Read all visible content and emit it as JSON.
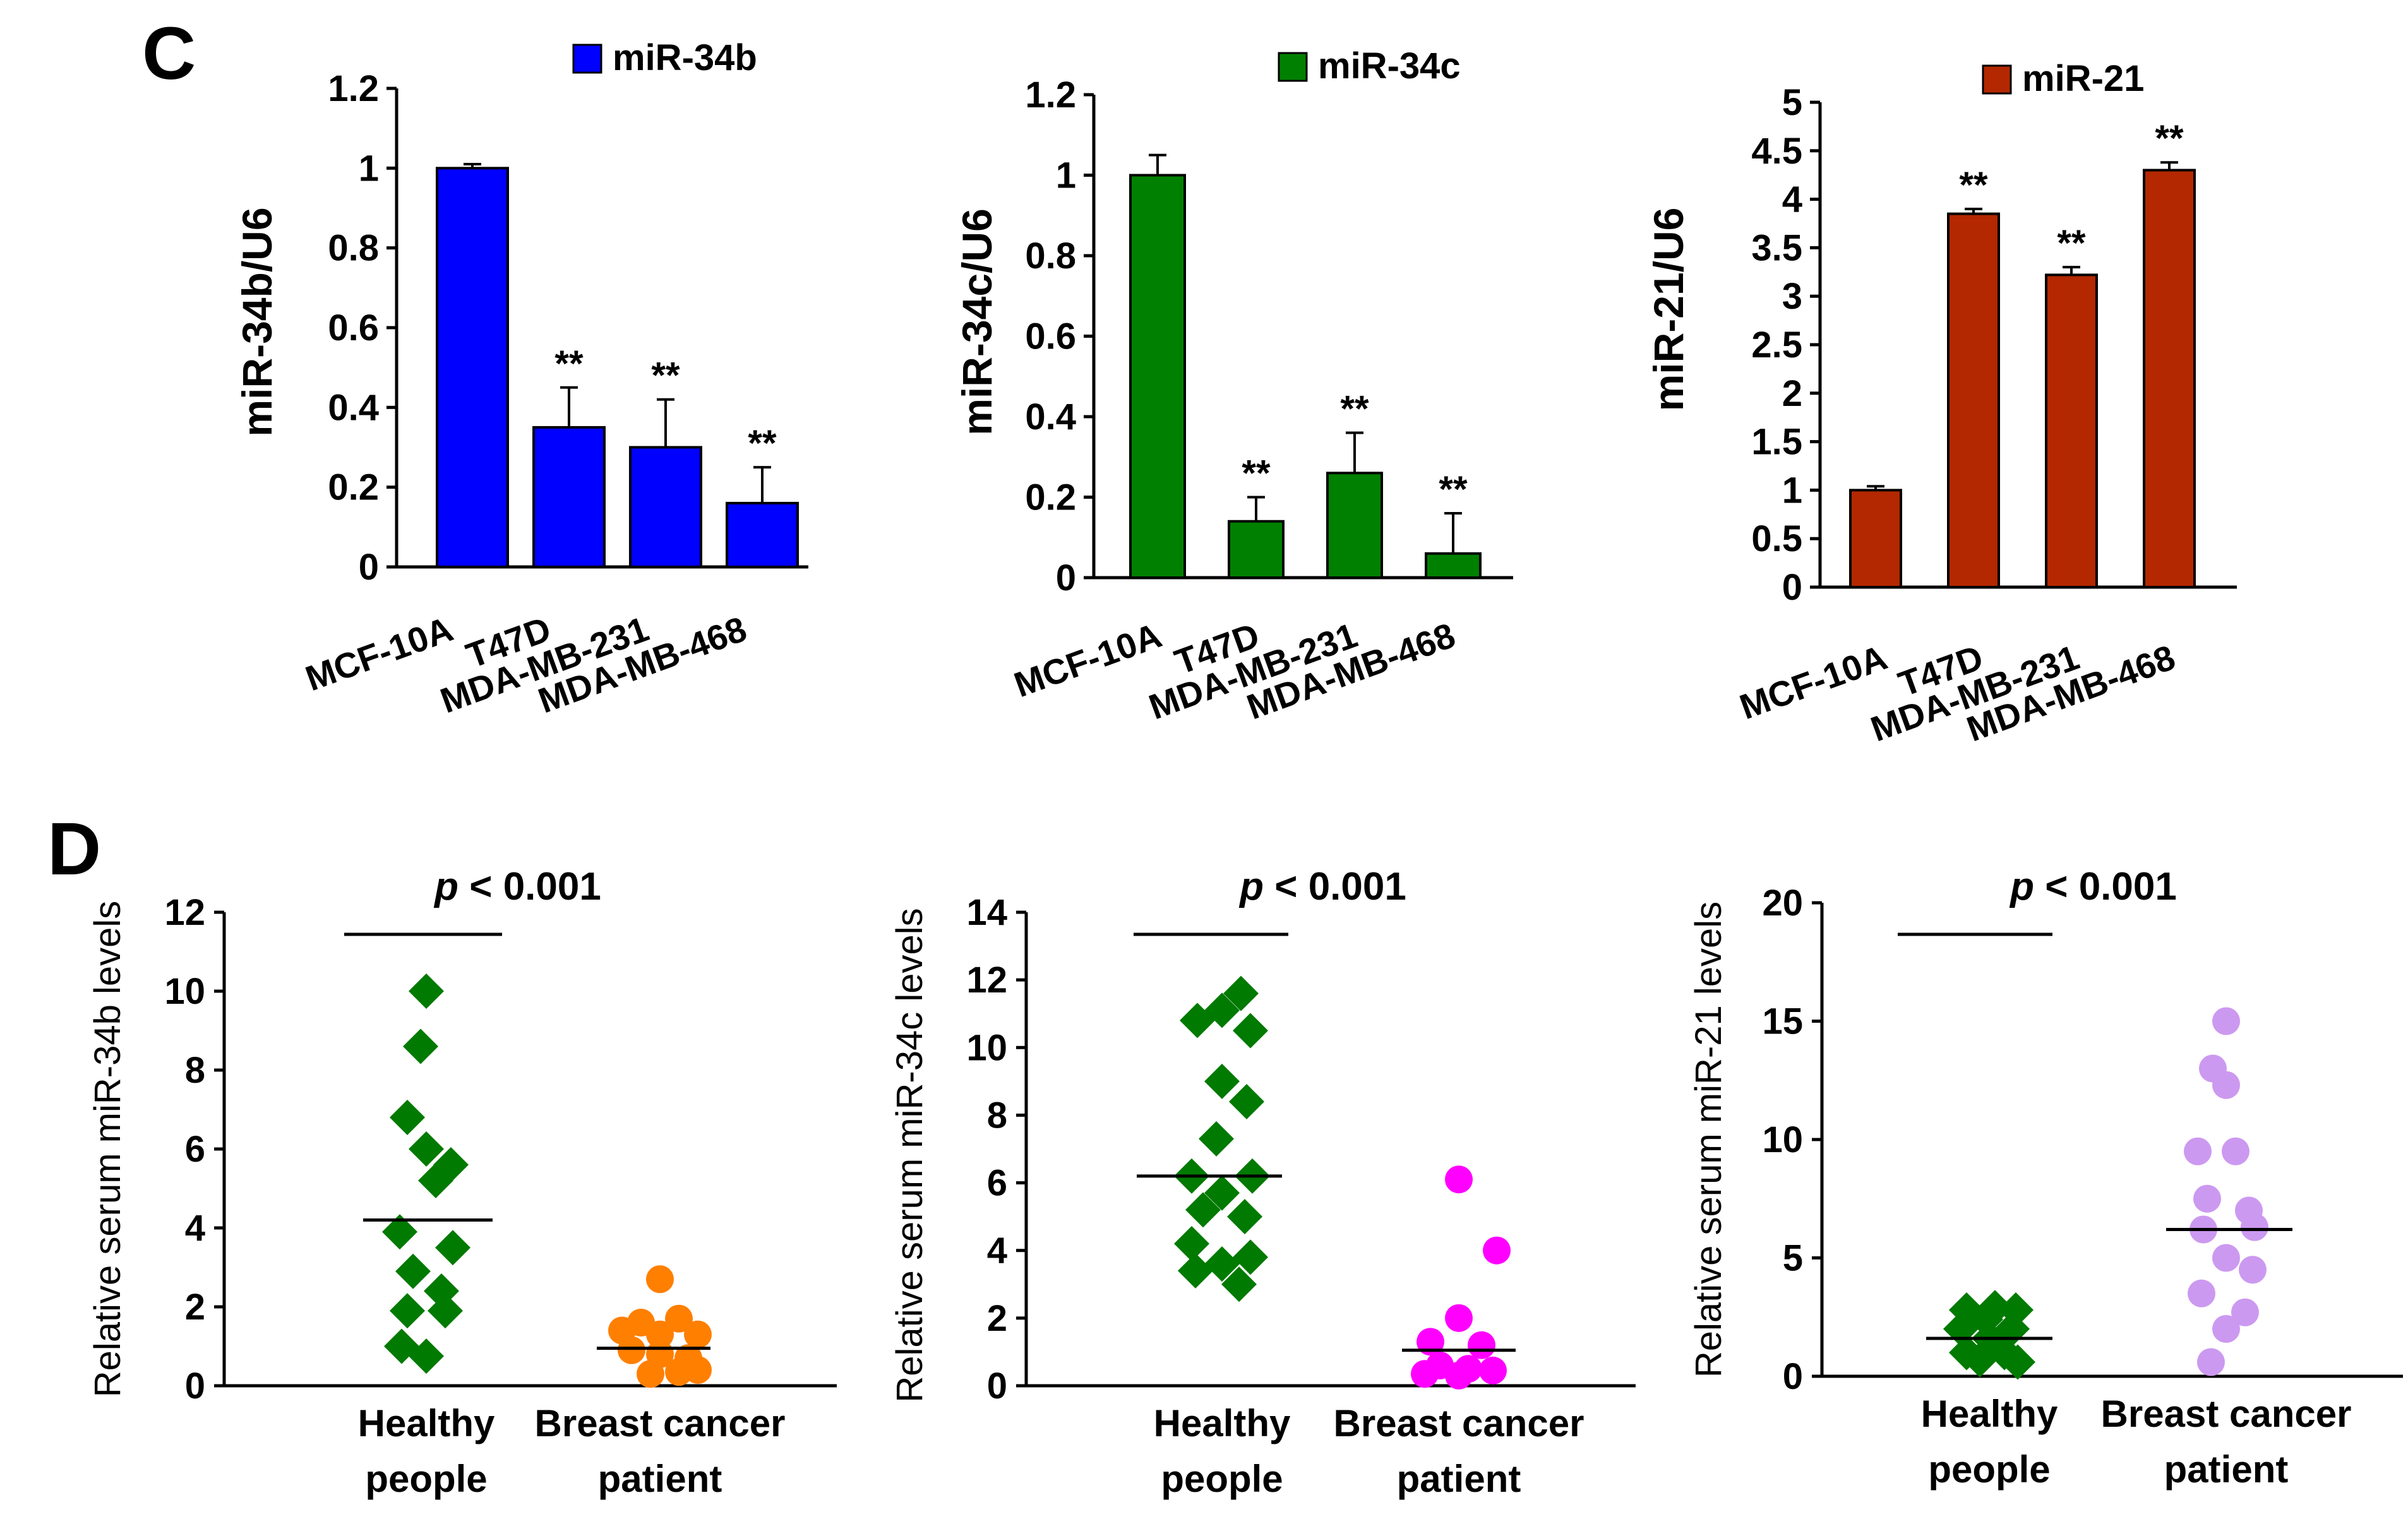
{
  "panels": {
    "C": "C",
    "D": "D"
  },
  "chart_data": [
    {
      "type": "bar",
      "panel": "C",
      "categories": [
        "MCF-10A",
        "T47D",
        "MDA-MB-231",
        "MDA-MB-468"
      ],
      "values": [
        1.0,
        0.35,
        0.3,
        0.16
      ],
      "errors": [
        0.01,
        0.1,
        0.12,
        0.09
      ],
      "significance": [
        "",
        "**",
        "**",
        "**"
      ],
      "ylabel": "miR-34b/U6",
      "ylim": [
        0,
        1.2
      ],
      "yticks": [
        "0",
        "0.2",
        "0.4",
        "0.6",
        "0.8",
        "1",
        "1.2"
      ],
      "legend": "miR-34b",
      "color": "#0000ff"
    },
    {
      "type": "bar",
      "panel": "C",
      "categories": [
        "MCF-10A",
        "T47D",
        "MDA-MB-231",
        "MDA-MB-468"
      ],
      "values": [
        1.0,
        0.14,
        0.26,
        0.06
      ],
      "errors": [
        0.05,
        0.06,
        0.1,
        0.1
      ],
      "significance": [
        "",
        "**",
        "**",
        "**"
      ],
      "ylabel": "miR-34c/U6",
      "ylim": [
        0,
        1.2
      ],
      "yticks": [
        "0",
        "0.2",
        "0.4",
        "0.6",
        "0.8",
        "1",
        "1.2"
      ],
      "legend": "miR-34c",
      "color": "#008000"
    },
    {
      "type": "bar",
      "panel": "C",
      "categories": [
        "MCF-10A",
        "T47D",
        "MDA-MB-231",
        "MDA-MB-468"
      ],
      "values": [
        1.0,
        3.85,
        3.22,
        4.3
      ],
      "errors": [
        0.04,
        0.05,
        0.08,
        0.08
      ],
      "significance": [
        "",
        "**",
        "**",
        "**"
      ],
      "ylabel": "miR-21/U6",
      "ylim": [
        0,
        5
      ],
      "yticks": [
        "0",
        "0.5",
        "1",
        "1.5",
        "2",
        "2.5",
        "3",
        "3.5",
        "4",
        "4.5",
        "5"
      ],
      "legend": "miR-21",
      "color": "#b32800"
    },
    {
      "type": "scatter",
      "panel": "D",
      "categories": [
        "Healthy people",
        "Breast cancer patient"
      ],
      "category_lines": [
        [
          "Healthy",
          "people"
        ],
        [
          "Breast cancer",
          "patient"
        ]
      ],
      "series": [
        {
          "name": "Healthy people",
          "marker": "diamond",
          "color": "#007a00",
          "points": [
            [
              0,
              10.0
            ],
            [
              -0.03,
              8.6
            ],
            [
              -0.1,
              6.8
            ],
            [
              0.0,
              6.0
            ],
            [
              0.13,
              5.6
            ],
            [
              0.05,
              5.2
            ],
            [
              -0.14,
              3.9
            ],
            [
              0.14,
              3.5
            ],
            [
              -0.07,
              2.9
            ],
            [
              0.08,
              2.4
            ],
            [
              -0.1,
              1.9
            ],
            [
              0.1,
              1.9
            ],
            [
              -0.13,
              1.0
            ],
            [
              0.0,
              0.75
            ]
          ],
          "median": 4.2
        },
        {
          "name": "Breast cancer patient",
          "marker": "circle",
          "color": "#ff7f00",
          "points": [
            [
              0.0,
              2.7
            ],
            [
              -0.1,
              1.6
            ],
            [
              0.1,
              1.7
            ],
            [
              -0.2,
              1.4
            ],
            [
              0.0,
              1.3
            ],
            [
              0.2,
              1.3
            ],
            [
              -0.15,
              0.9
            ],
            [
              0.0,
              0.8
            ],
            [
              0.15,
              0.7
            ],
            [
              -0.05,
              0.3
            ],
            [
              0.1,
              0.35
            ],
            [
              0.2,
              0.4
            ]
          ],
          "median": 0.95
        }
      ],
      "ylabel": "Relative serum miR-34b levels",
      "ylim": [
        0,
        12
      ],
      "yticks": [
        "0",
        "2",
        "4",
        "6",
        "8",
        "10",
        "12"
      ],
      "annotation": {
        "italic": "p",
        "rest": " < 0.001"
      }
    },
    {
      "type": "scatter",
      "panel": "D",
      "categories": [
        "Healthy people",
        "Breast cancer patient"
      ],
      "category_lines": [
        [
          "Healthy",
          "people"
        ],
        [
          "Breast cancer",
          "patient"
        ]
      ],
      "series": [
        {
          "name": "Healthy people",
          "marker": "diamond",
          "color": "#007a00",
          "points": [
            [
              0.1,
              11.6
            ],
            [
              0.0,
              11.1
            ],
            [
              -0.13,
              10.8
            ],
            [
              0.15,
              10.5
            ],
            [
              0.0,
              9.0
            ],
            [
              0.13,
              8.4
            ],
            [
              -0.03,
              7.3
            ],
            [
              -0.16,
              6.2
            ],
            [
              0.16,
              6.2
            ],
            [
              0.0,
              5.7
            ],
            [
              -0.1,
              5.2
            ],
            [
              0.12,
              5.0
            ],
            [
              -0.16,
              4.2
            ],
            [
              0.15,
              3.8
            ],
            [
              -0.14,
              3.4
            ],
            [
              0.0,
              3.6
            ],
            [
              0.09,
              3.0
            ]
          ],
          "median": 6.2
        },
        {
          "name": "Breast cancer patient",
          "marker": "circle",
          "color": "#ff00ff",
          "points": [
            [
              0.0,
              6.1
            ],
            [
              0.2,
              4.0
            ],
            [
              0.0,
              2.0
            ],
            [
              -0.15,
              1.3
            ],
            [
              0.12,
              1.2
            ],
            [
              -0.1,
              0.6
            ],
            [
              0.05,
              0.5
            ],
            [
              0.18,
              0.45
            ],
            [
              -0.18,
              0.35
            ],
            [
              0.0,
              0.3
            ]
          ],
          "median": 1.05
        }
      ],
      "ylabel": "Relative serum miR-34c levels",
      "ylim": [
        0,
        14
      ],
      "yticks": [
        "0",
        "2",
        "4",
        "6",
        "8",
        "10",
        "12",
        "14"
      ],
      "annotation": {
        "italic": "p",
        "rest": " < 0.001"
      }
    },
    {
      "type": "scatter",
      "panel": "D",
      "categories": [
        "Healthy people",
        "Breast cancer patient"
      ],
      "category_lines": [
        [
          "Healthy",
          "people"
        ],
        [
          "Breast cancer",
          "patient"
        ]
      ],
      "series": [
        {
          "name": "Healthy people",
          "marker": "diamond",
          "color": "#007a00",
          "points": [
            [
              -0.12,
              2.8
            ],
            [
              0.03,
              2.9
            ],
            [
              0.14,
              2.8
            ],
            [
              -0.02,
              2.4
            ],
            [
              -0.15,
              2.0
            ],
            [
              0.12,
              2.0
            ],
            [
              0.0,
              1.6
            ],
            [
              -0.12,
              1.0
            ],
            [
              0.08,
              1.0
            ],
            [
              -0.05,
              0.7
            ],
            [
              0.15,
              0.6
            ]
          ],
          "median": 1.6
        },
        {
          "name": "Breast cancer patient",
          "marker": "circle",
          "color": "#cc99f0",
          "points": [
            [
              0.0,
              15.0
            ],
            [
              -0.07,
              13.0
            ],
            [
              0.0,
              12.3
            ],
            [
              -0.15,
              9.5
            ],
            [
              0.05,
              9.5
            ],
            [
              -0.1,
              7.5
            ],
            [
              0.12,
              7.0
            ],
            [
              0.15,
              6.3
            ],
            [
              -0.12,
              6.2
            ],
            [
              0.0,
              5.0
            ],
            [
              0.14,
              4.5
            ],
            [
              -0.13,
              3.5
            ],
            [
              0.1,
              2.7
            ],
            [
              0.0,
              2.0
            ],
            [
              -0.08,
              0.6
            ]
          ],
          "median": 6.2
        }
      ],
      "ylabel": "Relative serum miR-21 levels",
      "ylim": [
        0,
        20
      ],
      "yticks": [
        "0",
        "5",
        "10",
        "15",
        "20"
      ],
      "annotation": {
        "italic": "p",
        "rest": " < 0.001"
      }
    }
  ]
}
